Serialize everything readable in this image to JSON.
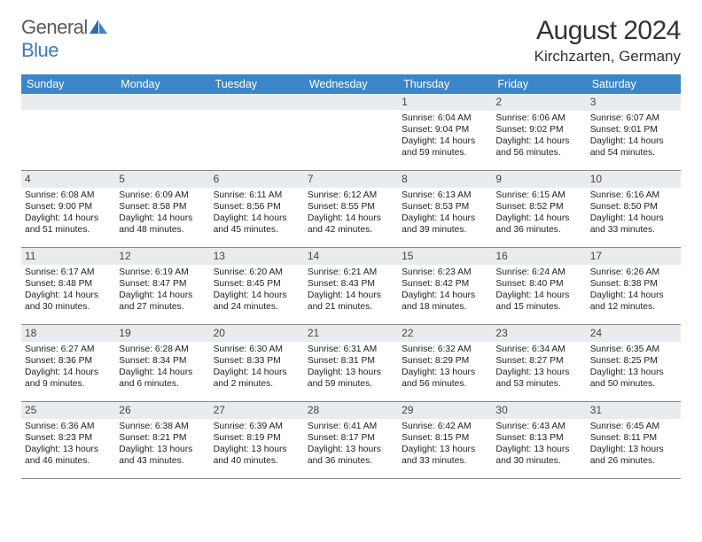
{
  "brand": {
    "general": "General",
    "blue": "Blue"
  },
  "title": "August 2024",
  "location": "Kirchzarten, Germany",
  "colors": {
    "header_bg": "#3a86c8",
    "header_fg": "#ffffff",
    "daynum_bg": "#e9ecef",
    "text": "#222222",
    "rule": "#888888"
  },
  "dayNames": [
    "Sunday",
    "Monday",
    "Tuesday",
    "Wednesday",
    "Thursday",
    "Friday",
    "Saturday"
  ],
  "weeks": [
    [
      {
        "n": null
      },
      {
        "n": null
      },
      {
        "n": null
      },
      {
        "n": null
      },
      {
        "n": "1",
        "rise": "Sunrise: 6:04 AM",
        "set": "Sunset: 9:04 PM",
        "day": "Daylight: 14 hours and 59 minutes."
      },
      {
        "n": "2",
        "rise": "Sunrise: 6:06 AM",
        "set": "Sunset: 9:02 PM",
        "day": "Daylight: 14 hours and 56 minutes."
      },
      {
        "n": "3",
        "rise": "Sunrise: 6:07 AM",
        "set": "Sunset: 9:01 PM",
        "day": "Daylight: 14 hours and 54 minutes."
      }
    ],
    [
      {
        "n": "4",
        "rise": "Sunrise: 6:08 AM",
        "set": "Sunset: 9:00 PM",
        "day": "Daylight: 14 hours and 51 minutes."
      },
      {
        "n": "5",
        "rise": "Sunrise: 6:09 AM",
        "set": "Sunset: 8:58 PM",
        "day": "Daylight: 14 hours and 48 minutes."
      },
      {
        "n": "6",
        "rise": "Sunrise: 6:11 AM",
        "set": "Sunset: 8:56 PM",
        "day": "Daylight: 14 hours and 45 minutes."
      },
      {
        "n": "7",
        "rise": "Sunrise: 6:12 AM",
        "set": "Sunset: 8:55 PM",
        "day": "Daylight: 14 hours and 42 minutes."
      },
      {
        "n": "8",
        "rise": "Sunrise: 6:13 AM",
        "set": "Sunset: 8:53 PM",
        "day": "Daylight: 14 hours and 39 minutes."
      },
      {
        "n": "9",
        "rise": "Sunrise: 6:15 AM",
        "set": "Sunset: 8:52 PM",
        "day": "Daylight: 14 hours and 36 minutes."
      },
      {
        "n": "10",
        "rise": "Sunrise: 6:16 AM",
        "set": "Sunset: 8:50 PM",
        "day": "Daylight: 14 hours and 33 minutes."
      }
    ],
    [
      {
        "n": "11",
        "rise": "Sunrise: 6:17 AM",
        "set": "Sunset: 8:48 PM",
        "day": "Daylight: 14 hours and 30 minutes."
      },
      {
        "n": "12",
        "rise": "Sunrise: 6:19 AM",
        "set": "Sunset: 8:47 PM",
        "day": "Daylight: 14 hours and 27 minutes."
      },
      {
        "n": "13",
        "rise": "Sunrise: 6:20 AM",
        "set": "Sunset: 8:45 PM",
        "day": "Daylight: 14 hours and 24 minutes."
      },
      {
        "n": "14",
        "rise": "Sunrise: 6:21 AM",
        "set": "Sunset: 8:43 PM",
        "day": "Daylight: 14 hours and 21 minutes."
      },
      {
        "n": "15",
        "rise": "Sunrise: 6:23 AM",
        "set": "Sunset: 8:42 PM",
        "day": "Daylight: 14 hours and 18 minutes."
      },
      {
        "n": "16",
        "rise": "Sunrise: 6:24 AM",
        "set": "Sunset: 8:40 PM",
        "day": "Daylight: 14 hours and 15 minutes."
      },
      {
        "n": "17",
        "rise": "Sunrise: 6:26 AM",
        "set": "Sunset: 8:38 PM",
        "day": "Daylight: 14 hours and 12 minutes."
      }
    ],
    [
      {
        "n": "18",
        "rise": "Sunrise: 6:27 AM",
        "set": "Sunset: 8:36 PM",
        "day": "Daylight: 14 hours and 9 minutes."
      },
      {
        "n": "19",
        "rise": "Sunrise: 6:28 AM",
        "set": "Sunset: 8:34 PM",
        "day": "Daylight: 14 hours and 6 minutes."
      },
      {
        "n": "20",
        "rise": "Sunrise: 6:30 AM",
        "set": "Sunset: 8:33 PM",
        "day": "Daylight: 14 hours and 2 minutes."
      },
      {
        "n": "21",
        "rise": "Sunrise: 6:31 AM",
        "set": "Sunset: 8:31 PM",
        "day": "Daylight: 13 hours and 59 minutes."
      },
      {
        "n": "22",
        "rise": "Sunrise: 6:32 AM",
        "set": "Sunset: 8:29 PM",
        "day": "Daylight: 13 hours and 56 minutes."
      },
      {
        "n": "23",
        "rise": "Sunrise: 6:34 AM",
        "set": "Sunset: 8:27 PM",
        "day": "Daylight: 13 hours and 53 minutes."
      },
      {
        "n": "24",
        "rise": "Sunrise: 6:35 AM",
        "set": "Sunset: 8:25 PM",
        "day": "Daylight: 13 hours and 50 minutes."
      }
    ],
    [
      {
        "n": "25",
        "rise": "Sunrise: 6:36 AM",
        "set": "Sunset: 8:23 PM",
        "day": "Daylight: 13 hours and 46 minutes."
      },
      {
        "n": "26",
        "rise": "Sunrise: 6:38 AM",
        "set": "Sunset: 8:21 PM",
        "day": "Daylight: 13 hours and 43 minutes."
      },
      {
        "n": "27",
        "rise": "Sunrise: 6:39 AM",
        "set": "Sunset: 8:19 PM",
        "day": "Daylight: 13 hours and 40 minutes."
      },
      {
        "n": "28",
        "rise": "Sunrise: 6:41 AM",
        "set": "Sunset: 8:17 PM",
        "day": "Daylight: 13 hours and 36 minutes."
      },
      {
        "n": "29",
        "rise": "Sunrise: 6:42 AM",
        "set": "Sunset: 8:15 PM",
        "day": "Daylight: 13 hours and 33 minutes."
      },
      {
        "n": "30",
        "rise": "Sunrise: 6:43 AM",
        "set": "Sunset: 8:13 PM",
        "day": "Daylight: 13 hours and 30 minutes."
      },
      {
        "n": "31",
        "rise": "Sunrise: 6:45 AM",
        "set": "Sunset: 8:11 PM",
        "day": "Daylight: 13 hours and 26 minutes."
      }
    ]
  ]
}
